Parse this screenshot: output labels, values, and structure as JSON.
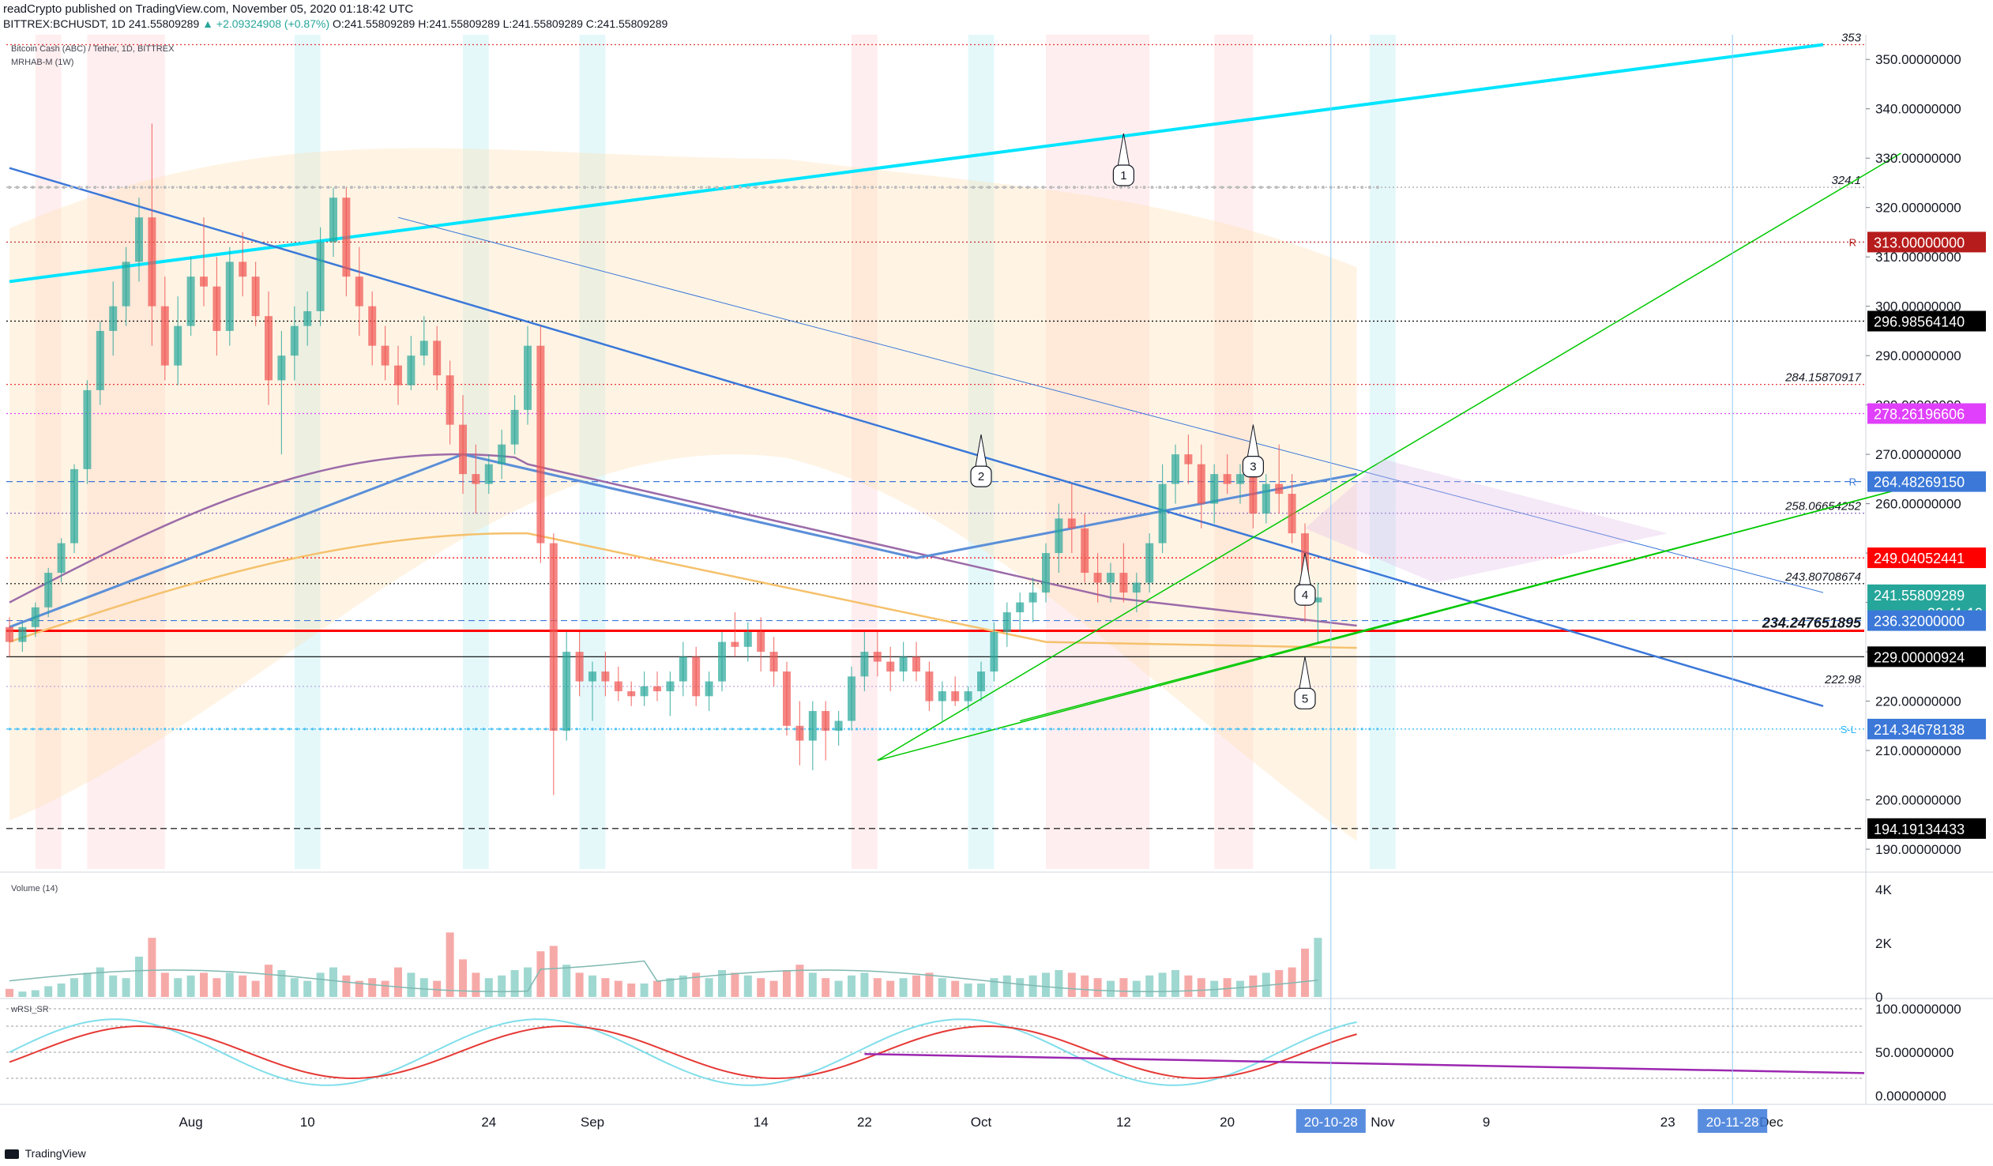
{
  "header": {
    "publisher": "readCrypto published on TradingView.com, November 05, 2020 01:18:42 UTC",
    "symbol": "BITTREX:BCHUSDT, 1D",
    "last": "241.55809289",
    "change": "▲ +2.09324908 (+0.87%)",
    "ohlc": "O:241.55809289 H:241.55809289 L:241.55809289 C:241.55809289"
  },
  "legend": {
    "title": "Bitcoin Cash (ABC) / Tether, 1D, BITTREX",
    "indicator": "MRHAB-M (1W)"
  },
  "volume_label": "Volume (14)",
  "rsi_label": "wRSI_SR",
  "logo_text": "TradingView",
  "colors": {
    "up": "#26a69a",
    "down": "#ef5350",
    "cyan_line": "#00e5ff",
    "green_line": "#00c800",
    "blue_line": "#3b78d8",
    "purple_line": "#9c27b0",
    "red_line": "#ff0000"
  },
  "chart_data": {
    "type": "candlestick",
    "price_axis": {
      "ylim": [
        186,
        355
      ],
      "ticks": [
        "190.00000000",
        "200.00000000",
        "210.00000000",
        "220.00000000",
        "230.00000000",
        "240.00000000",
        "250.00000000",
        "260.00000000",
        "270.00000000",
        "280.00000000",
        "290.00000000",
        "300.00000000",
        "310.00000000",
        "320.00000000",
        "330.00000000",
        "340.00000000",
        "350.00000000"
      ]
    },
    "x_axis": {
      "labels": [
        {
          "text": "Aug",
          "day": 14
        },
        {
          "text": "10",
          "day": 23
        },
        {
          "text": "24",
          "day": 37
        },
        {
          "text": "Sep",
          "day": 45
        },
        {
          "text": "14",
          "day": 58
        },
        {
          "text": "22",
          "day": 66
        },
        {
          "text": "Oct",
          "day": 75
        },
        {
          "text": "12",
          "day": 86
        },
        {
          "text": "20",
          "day": 94
        },
        {
          "text": "Nov",
          "day": 106
        },
        {
          "text": "9",
          "day": 114
        },
        {
          "text": "23",
          "day": 128
        },
        {
          "text": "Dec",
          "day": 136
        }
      ],
      "highlight": [
        {
          "text": "20-10-28",
          "day": 102
        },
        {
          "text": "20-11-28",
          "day": 133
        }
      ]
    },
    "candles": [
      [
        235,
        237,
        229,
        232
      ],
      [
        232,
        236,
        230,
        235
      ],
      [
        235,
        240,
        233,
        239
      ],
      [
        239,
        247,
        237,
        246
      ],
      [
        246,
        253,
        244,
        252
      ],
      [
        252,
        268,
        250,
        267
      ],
      [
        267,
        285,
        264,
        283
      ],
      [
        283,
        297,
        280,
        295
      ],
      [
        295,
        305,
        290,
        300
      ],
      [
        300,
        312,
        296,
        309
      ],
      [
        309,
        322,
        305,
        318
      ],
      [
        318,
        337,
        292,
        300
      ],
      [
        300,
        306,
        285,
        288
      ],
      [
        288,
        302,
        284,
        296
      ],
      [
        296,
        310,
        294,
        306
      ],
      [
        306,
        318,
        300,
        304
      ],
      [
        304,
        310,
        290,
        295
      ],
      [
        295,
        312,
        292,
        309
      ],
      [
        309,
        315,
        302,
        306
      ],
      [
        306,
        309,
        296,
        298
      ],
      [
        298,
        303,
        280,
        285
      ],
      [
        285,
        295,
        270,
        290
      ],
      [
        290,
        300,
        285,
        296
      ],
      [
        296,
        303,
        292,
        299
      ],
      [
        299,
        316,
        296,
        313
      ],
      [
        313,
        324,
        310,
        322
      ],
      [
        322,
        324,
        302,
        306
      ],
      [
        306,
        312,
        294,
        300
      ],
      [
        300,
        303,
        288,
        292
      ],
      [
        292,
        296,
        285,
        288
      ],
      [
        288,
        292,
        280,
        284
      ],
      [
        284,
        294,
        283,
        290
      ],
      [
        290,
        298,
        288,
        293
      ],
      [
        293,
        296,
        283,
        286
      ],
      [
        286,
        289,
        272,
        276
      ],
      [
        276,
        282,
        262,
        266
      ],
      [
        266,
        272,
        258,
        264
      ],
      [
        264,
        270,
        262,
        268
      ],
      [
        268,
        275,
        265,
        272
      ],
      [
        272,
        282,
        270,
        279
      ],
      [
        279,
        296,
        276,
        292
      ],
      [
        292,
        296,
        248,
        252
      ],
      [
        252,
        254,
        201,
        214
      ],
      [
        214,
        234,
        212,
        230
      ],
      [
        230,
        234,
        221,
        224
      ],
      [
        224,
        228,
        216,
        226
      ],
      [
        226,
        230,
        221,
        224
      ],
      [
        224,
        227,
        220,
        222
      ],
      [
        222,
        224,
        219,
        221
      ],
      [
        221,
        226,
        219,
        223
      ],
      [
        223,
        226,
        220,
        222
      ],
      [
        222,
        226,
        217,
        224
      ],
      [
        224,
        232,
        221,
        229
      ],
      [
        229,
        231,
        219,
        221
      ],
      [
        221,
        226,
        218,
        224
      ],
      [
        224,
        234,
        222,
        232
      ],
      [
        232,
        238,
        229,
        231
      ],
      [
        231,
        236,
        228,
        234
      ],
      [
        234,
        237,
        226,
        230
      ],
      [
        230,
        233,
        223,
        226
      ],
      [
        226,
        228,
        213,
        215
      ],
      [
        215,
        220,
        207,
        212
      ],
      [
        212,
        220,
        206,
        218
      ],
      [
        218,
        220,
        208,
        214
      ],
      [
        214,
        218,
        211,
        216
      ],
      [
        216,
        227,
        214,
        225
      ],
      [
        225,
        234,
        222,
        230
      ],
      [
        230,
        234,
        225,
        228
      ],
      [
        228,
        231,
        222,
        226
      ],
      [
        226,
        232,
        224,
        229
      ],
      [
        229,
        232,
        224,
        226
      ],
      [
        226,
        228,
        218,
        220
      ],
      [
        220,
        224,
        216,
        222
      ],
      [
        222,
        225,
        219,
        220
      ],
      [
        220,
        223,
        218,
        222
      ],
      [
        222,
        228,
        220,
        226
      ],
      [
        226,
        236,
        224,
        234
      ],
      [
        234,
        240,
        231,
        238
      ],
      [
        238,
        242,
        234,
        240
      ],
      [
        240,
        245,
        236,
        242
      ],
      [
        242,
        252,
        240,
        250
      ],
      [
        250,
        260,
        246,
        257
      ],
      [
        257,
        264,
        250,
        255
      ],
      [
        255,
        258,
        244,
        246
      ],
      [
        246,
        250,
        240,
        244
      ],
      [
        244,
        248,
        240,
        246
      ],
      [
        246,
        252,
        240,
        242
      ],
      [
        242,
        246,
        238,
        244
      ],
      [
        244,
        254,
        242,
        252
      ],
      [
        252,
        268,
        250,
        264
      ],
      [
        264,
        272,
        260,
        270
      ],
      [
        270,
        274,
        264,
        268
      ],
      [
        268,
        272,
        255,
        260
      ],
      [
        260,
        268,
        256,
        266
      ],
      [
        266,
        270,
        262,
        264
      ],
      [
        264,
        268,
        260,
        266
      ],
      [
        266,
        270,
        255,
        258
      ],
      [
        258,
        266,
        256,
        264
      ],
      [
        264,
        272,
        258,
        262
      ],
      [
        262,
        266,
        252,
        254
      ],
      [
        254,
        256,
        236,
        240
      ],
      [
        240,
        244,
        232,
        241
      ]
    ],
    "horizontal_levels": [
      {
        "label": "313.00000000",
        "price": 313,
        "color": "#b71c1c",
        "style": "dotted",
        "tag": "R"
      },
      {
        "label": "296.98564140",
        "price": 296.9856414,
        "color": "#000000",
        "style": "dotted"
      },
      {
        "label": "284.15870917",
        "price": 284.15870917,
        "color": "#e53935",
        "style": "dotted"
      },
      {
        "label": "278.26196606",
        "price": 278.26196606,
        "color": "#e040fb",
        "style": "dotted"
      },
      {
        "label": "264.48269150",
        "price": 264.4826915,
        "color": "#3b78d8",
        "style": "dashed",
        "tag": "R"
      },
      {
        "label": "258.06654252",
        "price": 258.06654252,
        "color": "#7e57c2",
        "style": "dotted"
      },
      {
        "label": "249.04052441",
        "price": 249.04052441,
        "color": "#ff0000",
        "style": "dotted"
      },
      {
        "label": "243.80708674",
        "price": 243.80708674,
        "color": "#000000",
        "style": "dotted"
      },
      {
        "label": "236.32000000",
        "price": 236.32,
        "color": "#3b78d8",
        "style": "dashed"
      },
      {
        "label": "234.247651895",
        "price": 234.247651895,
        "color": "#ff0000",
        "style": "solid"
      },
      {
        "label": "229.00000924",
        "price": 229.00000924,
        "color": "#000000",
        "style": "solid"
      },
      {
        "label": "222.98",
        "price": 222.98,
        "color": "#b39ddb",
        "style": "dotted"
      },
      {
        "label": "214.34678138",
        "price": 214.34678138,
        "color": "#29b6f6",
        "style": "dotted",
        "tag": "S-L"
      },
      {
        "label": "194.19134433",
        "price": 194.19134433,
        "color": "#000000",
        "style": "dashed"
      },
      {
        "label": "324.1",
        "price": 324.1,
        "color": "#9e9e9e",
        "style": "dotted"
      },
      {
        "label": "353",
        "price": 353,
        "color": "#e53935",
        "style": "dotted"
      }
    ],
    "axis_tags": [
      {
        "label": "313.00000000",
        "price": 313,
        "bg": "#b71c1c"
      },
      {
        "label": "296.98564140",
        "price": 296.9856414,
        "bg": "#000000"
      },
      {
        "label": "278.26196606",
        "price": 278.26196606,
        "bg": "#e040fb"
      },
      {
        "label": "264.48269150",
        "price": 264.4826915,
        "bg": "#3b78d8"
      },
      {
        "label": "249.04052441",
        "price": 249.04052441,
        "bg": "#ff0000"
      },
      {
        "label": "241.55809289",
        "price": 241.55809289,
        "bg": "#26a69a"
      },
      {
        "label": "22:41:19",
        "price": 237.9,
        "bg": "#26a69a"
      },
      {
        "label": "236.32000000",
        "price": 236.32,
        "bg": "#3b78d8"
      },
      {
        "label": "229.00000924",
        "price": 229.00000924,
        "bg": "#000000"
      },
      {
        "label": "214.34678138",
        "price": 214.34678138,
        "bg": "#3b78d8"
      },
      {
        "label": "194.19134433",
        "price": 194.19134433,
        "bg": "#000000"
      }
    ],
    "trend_lines": [
      {
        "name": "cyan",
        "points": [
          [
            0,
            305
          ],
          [
            140,
            353
          ]
        ],
        "color": "#00e5ff",
        "width": 4
      },
      {
        "name": "blue-upper",
        "points": [
          [
            0,
            328
          ],
          [
            140,
            219
          ]
        ],
        "color": "#3b78d8",
        "width": 2.5
      },
      {
        "name": "blue-thin",
        "points": [
          [
            30,
            318
          ],
          [
            140,
            242
          ]
        ],
        "color": "#3b78d8",
        "width": 1
      },
      {
        "name": "green-steep",
        "points": [
          [
            67,
            208
          ],
          [
            146,
            331
          ]
        ],
        "color": "#00c800",
        "width": 1.5
      },
      {
        "name": "green-low",
        "points": [
          [
            67,
            208
          ],
          [
            146,
            263
          ]
        ],
        "color": "#00c800",
        "width": 1.5
      },
      {
        "name": "green-mid",
        "points": [
          [
            78,
            216
          ],
          [
            146,
            263
          ]
        ],
        "color": "#00c800",
        "width": 1.5
      }
    ],
    "callouts": [
      {
        "text": "1",
        "day": 86,
        "price": 335
      },
      {
        "text": "2",
        "day": 75,
        "price": 274
      },
      {
        "text": "3",
        "day": 96,
        "price": 276
      },
      {
        "text": "4",
        "day": 100,
        "price": 250
      },
      {
        "text": "5",
        "day": 100,
        "price": 229
      }
    ],
    "volume": {
      "ticks": [
        "4K",
        "2K",
        "0"
      ],
      "values": [
        300,
        200,
        250,
        400,
        500,
        700,
        900,
        1100,
        800,
        700,
        1500,
        2200,
        900,
        700,
        800,
        900,
        700,
        900,
        800,
        600,
        1200,
        1000,
        700,
        600,
        900,
        1100,
        800,
        600,
        700,
        600,
        1100,
        900,
        700,
        600,
        2400,
        1400,
        900,
        700,
        800,
        1000,
        1100,
        1700,
        1900,
        1200,
        900,
        800,
        700,
        600,
        500,
        500,
        600,
        700,
        800,
        900,
        700,
        1000,
        900,
        800,
        700,
        600,
        1000,
        1200,
        900,
        700,
        600,
        800,
        900,
        700,
        600,
        700,
        800,
        900,
        700,
        600,
        500,
        500,
        700,
        800,
        700,
        800,
        900,
        1000,
        900,
        800,
        700,
        600,
        700,
        600,
        800,
        900,
        1000,
        800,
        700,
        600,
        700,
        600,
        800,
        900,
        1000,
        1100,
        1800,
        2200
      ]
    },
    "rsi": {
      "ticks": [
        "100.00000000",
        "50.00000000",
        "0.00000000"
      ],
      "ylim": [
        -10,
        110
      ]
    }
  }
}
